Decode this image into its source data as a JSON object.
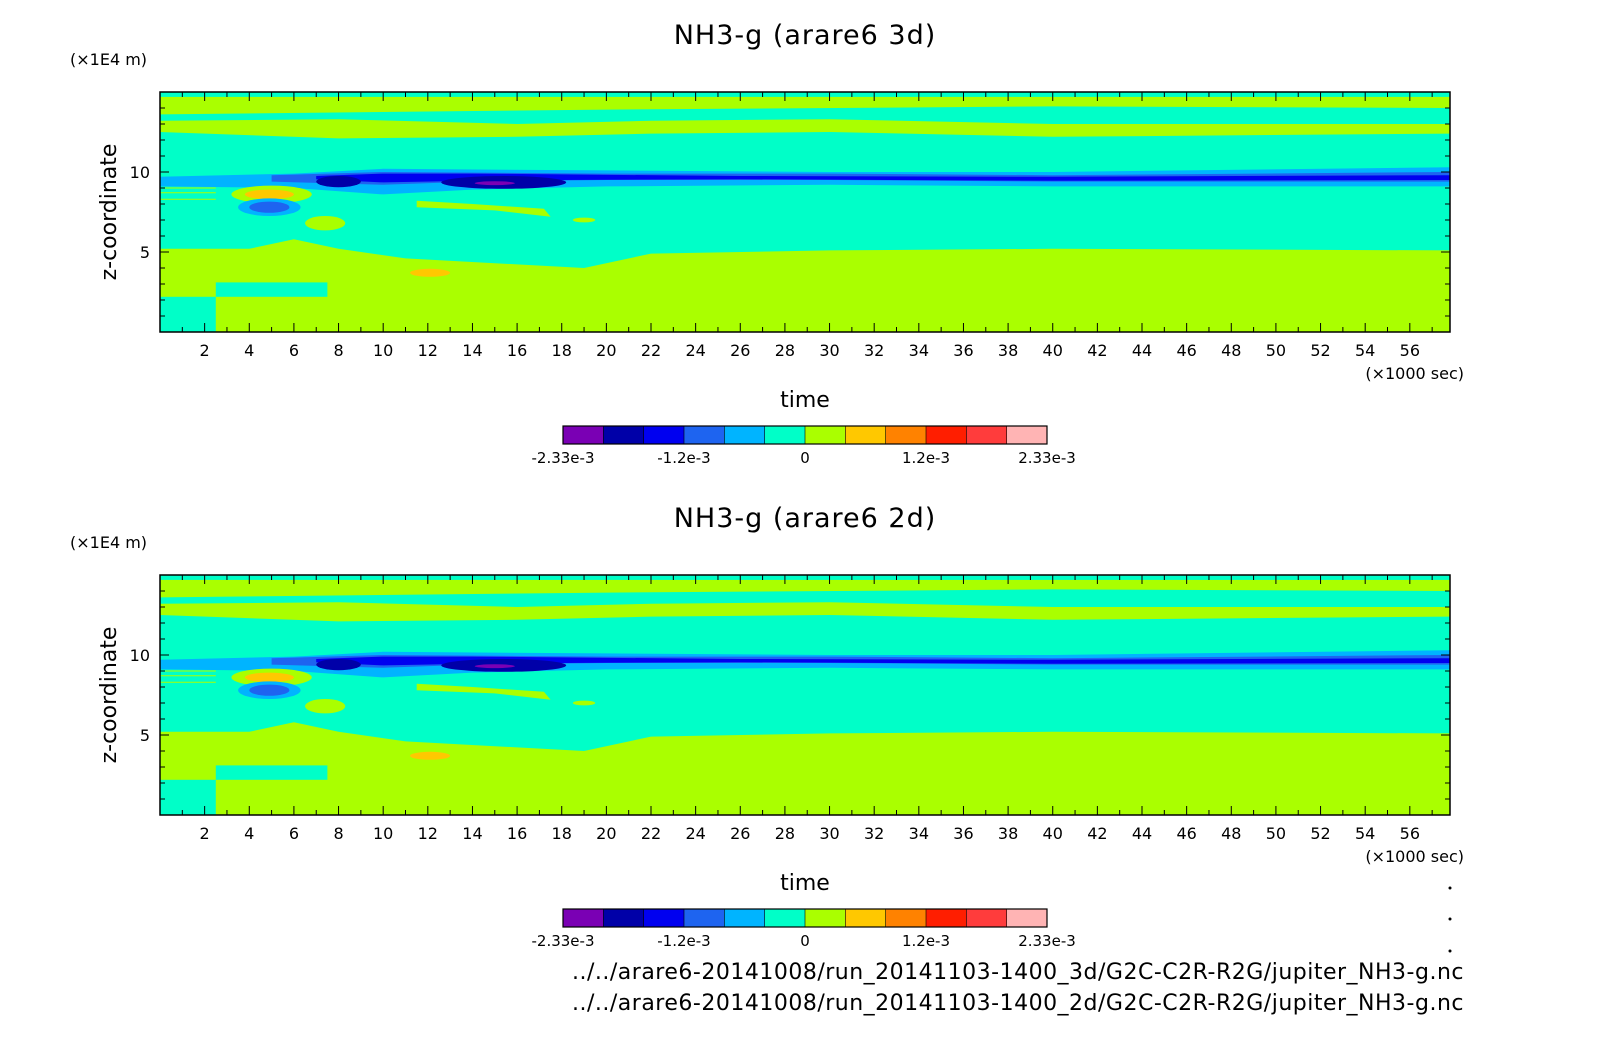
{
  "chart_data": [
    {
      "type": "heatmap",
      "title": "NH3-g (arare6 3d)",
      "xlabel": "time",
      "x_unit": "(×1000 sec)",
      "ylabel": "z-coordinate",
      "y_unit": "(×1E4 m)",
      "xlim": [
        0,
        57.8
      ],
      "ylim": [
        0,
        15
      ],
      "x_ticks": [
        2,
        4,
        6,
        8,
        10,
        12,
        14,
        16,
        18,
        20,
        22,
        24,
        26,
        28,
        30,
        32,
        34,
        36,
        38,
        40,
        42,
        44,
        46,
        48,
        50,
        52,
        54,
        56
      ],
      "y_ticks": [
        5,
        10
      ],
      "colorbar": {
        "colors": [
          "#7a00b4",
          "#0000a8",
          "#0000f0",
          "#1e64f0",
          "#00b4ff",
          "#00ffc8",
          "#aaff00",
          "#ffc800",
          "#ff8200",
          "#ff1e00",
          "#ff3c3c",
          "#ffb4b4"
        ],
        "tick_labels": [
          "-2.33e-3",
          "-1.2e-3",
          "0",
          "1.2e-3",
          "2.33e-3"
        ]
      }
    },
    {
      "type": "heatmap",
      "title": "NH3-g (arare6 2d)",
      "xlabel": "time",
      "x_unit": "(×1000 sec)",
      "ylabel": "z-coordinate",
      "y_unit": "(×1E4 m)",
      "xlim": [
        0,
        57.8
      ],
      "ylim": [
        0,
        15
      ],
      "x_ticks": [
        2,
        4,
        6,
        8,
        10,
        12,
        14,
        16,
        18,
        20,
        22,
        24,
        26,
        28,
        30,
        32,
        34,
        36,
        38,
        40,
        42,
        44,
        46,
        48,
        50,
        52,
        54,
        56
      ],
      "y_ticks": [
        5,
        10
      ],
      "colorbar": {
        "colors": [
          "#7a00b4",
          "#0000a8",
          "#0000f0",
          "#1e64f0",
          "#00b4ff",
          "#00ffc8",
          "#aaff00",
          "#ffc800",
          "#ff8200",
          "#ff1e00",
          "#ff3c3c",
          "#ffb4b4"
        ],
        "tick_labels": [
          "-2.33e-3",
          "-1.2e-3",
          "0",
          "1.2e-3",
          "2.33e-3"
        ]
      }
    }
  ],
  "file_paths": [
    "../../arare6-20141008/run_20141103-1400_3d/G2C-C2R-R2G/jupiter_NH3-g.nc",
    "../../arare6-20141008/run_20141103-1400_2d/G2C-C2R-R2G/jupiter_NH3-g.nc"
  ]
}
